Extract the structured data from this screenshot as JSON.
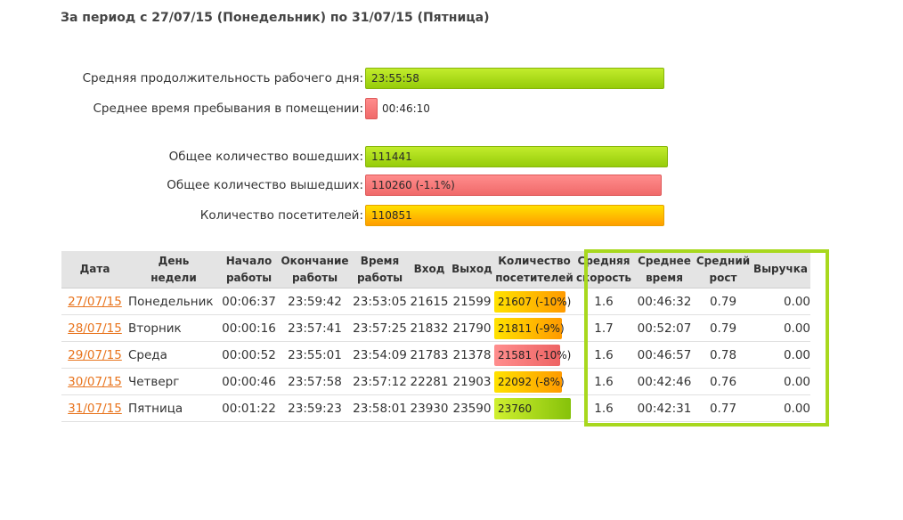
{
  "title": "За период с 27/07/15 (Понедельник) по 31/07/15 (Пятница)",
  "stats": {
    "avg_workday": {
      "label": "Средняя продолжительность рабочего дня:",
      "value": "23:55:58"
    },
    "avg_stay": {
      "label": "Среднее время пребывания в помещении:",
      "value": "00:46:10"
    },
    "total_in": {
      "label": "Общее количество вошедших:",
      "value": "111441"
    },
    "total_out": {
      "label": "Общее количество вышедших:",
      "value": "110260 (-1.1%)"
    },
    "visitors": {
      "label": "Количество посетителей:",
      "value": "110851"
    }
  },
  "colors": {
    "green": "#96cc0a",
    "red": "#f06a6a",
    "orange": "#ffb000",
    "highlight": "#a8d81e",
    "link": "#e8731c"
  },
  "table": {
    "headers": {
      "date": "Дата",
      "day": "День\nнедели",
      "start": "Начало\nработы",
      "end": "Окончание\nработы",
      "time": "Время\nработы",
      "in": "Вход",
      "out": "Выход",
      "visitors": "Количество\nпосетителей",
      "speed": "Средняя\nскорость",
      "avg_time": "Среднее\nвремя",
      "growth": "Средний\nрост",
      "revenue": "Выручка"
    },
    "rows": [
      {
        "date": "27/07/15",
        "day": "Понедельник",
        "start": "00:06:37",
        "end": "23:59:42",
        "time": "23:53:05",
        "in": "21615",
        "out": "21599",
        "visitors": "21607 (-10%)",
        "speed": "1.6",
        "avg_time": "00:46:32",
        "growth": "0.79",
        "revenue": "0.00"
      },
      {
        "date": "28/07/15",
        "day": "Вторник",
        "start": "00:00:16",
        "end": "23:57:41",
        "time": "23:57:25",
        "in": "21832",
        "out": "21790",
        "visitors": "21811 (-9%)",
        "speed": "1.7",
        "avg_time": "00:52:07",
        "growth": "0.79",
        "revenue": "0.00"
      },
      {
        "date": "29/07/15",
        "day": "Среда",
        "start": "00:00:52",
        "end": "23:55:01",
        "time": "23:54:09",
        "in": "21783",
        "out": "21378",
        "visitors": "21581 (-10%)",
        "speed": "1.6",
        "avg_time": "00:46:57",
        "growth": "0.78",
        "revenue": "0.00"
      },
      {
        "date": "30/07/15",
        "day": "Четверг",
        "start": "00:00:46",
        "end": "23:57:58",
        "time": "23:57:12",
        "in": "22281",
        "out": "21903",
        "visitors": "22092 (-8%)",
        "speed": "1.6",
        "avg_time": "00:42:46",
        "growth": "0.76",
        "revenue": "0.00"
      },
      {
        "date": "31/07/15",
        "day": "Пятница",
        "start": "00:01:22",
        "end": "23:59:23",
        "time": "23:58:01",
        "in": "23930",
        "out": "23590",
        "visitors": "23760",
        "speed": "1.6",
        "avg_time": "00:42:31",
        "growth": "0.77",
        "revenue": "0.00"
      }
    ]
  }
}
